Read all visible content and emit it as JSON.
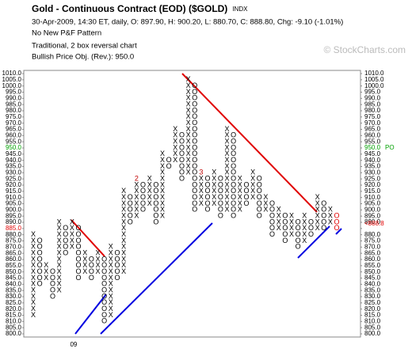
{
  "chart_data": {
    "type": "point-and-figure",
    "title": "Gold - Continuous Contract (EOD) ($GOLD)",
    "exchange": "INDX",
    "subtitle": "30-Apr-2009, 14:30 ET, daily, O: 897.90, H: 900.20, L: 880.70, C: 888.80, Chg: -9.10 (-1.01%)",
    "pattern": "No New P&F Pattern",
    "chart_method": "Traditional, 2 box reversal chart",
    "price_objective_text": "Bullish Price Obj. (Rev.): 950.0",
    "watermark": "© StockCharts.com",
    "box_size": 5,
    "ylim": [
      800,
      1010
    ],
    "yticks": [
      {
        "value": 1010,
        "label": "1010.0"
      },
      {
        "value": 1005,
        "label": "1005.0"
      },
      {
        "value": 1000,
        "label": "1000.0"
      },
      {
        "value": 995,
        "label": "995.0"
      },
      {
        "value": 990,
        "label": "990.0"
      },
      {
        "value": 985,
        "label": "985.0"
      },
      {
        "value": 980,
        "label": "980.0"
      },
      {
        "value": 975,
        "label": "975.0"
      },
      {
        "value": 970,
        "label": "970.0"
      },
      {
        "value": 965,
        "label": "965.0"
      },
      {
        "value": 960,
        "label": "960.0"
      },
      {
        "value": 955,
        "label": "955.0"
      },
      {
        "value": 950,
        "label": "950.0"
      },
      {
        "value": 945,
        "label": "945.0"
      },
      {
        "value": 940,
        "label": "940.0"
      },
      {
        "value": 935,
        "label": "935.0"
      },
      {
        "value": 930,
        "label": "930.0"
      },
      {
        "value": 925,
        "label": "925.0"
      },
      {
        "value": 920,
        "label": "920.0"
      },
      {
        "value": 915,
        "label": "915.0"
      },
      {
        "value": 910,
        "label": "910.0"
      },
      {
        "value": 905,
        "label": "905.0"
      },
      {
        "value": 900,
        "label": "900.0"
      },
      {
        "value": 895,
        "label": "895.0"
      },
      {
        "value": 890,
        "label": "890.0"
      },
      {
        "value": 885,
        "label": "885.0"
      },
      {
        "value": 880,
        "label": "880.0"
      },
      {
        "value": 875,
        "label": "875.0"
      },
      {
        "value": 870,
        "label": "870.0"
      },
      {
        "value": 865,
        "label": "865.0"
      },
      {
        "value": 860,
        "label": "860.0"
      },
      {
        "value": 855,
        "label": "855.0"
      },
      {
        "value": 850,
        "label": "850.0"
      },
      {
        "value": 845,
        "label": "845.0"
      },
      {
        "value": 840,
        "label": "840.0"
      },
      {
        "value": 835,
        "label": "835.0"
      },
      {
        "value": 830,
        "label": "830.0"
      },
      {
        "value": 825,
        "label": "825.0"
      },
      {
        "value": 820,
        "label": "820.0"
      },
      {
        "value": 815,
        "label": "815.0"
      },
      {
        "value": 810,
        "label": "810.0"
      },
      {
        "value": 805,
        "label": "805.0"
      },
      {
        "value": 800,
        "label": "800.0"
      }
    ],
    "price_objective": {
      "value": 950,
      "label": "PO",
      "color": "#00a000"
    },
    "current_box": {
      "value": 885,
      "color": "#e00000"
    },
    "last_price": {
      "value": 888.8,
      "label": "<888.8",
      "color": "#e00000"
    },
    "columns": [
      {
        "type": "X",
        "low": 815,
        "high": 880
      },
      {
        "type": "O",
        "low": 840,
        "high": 875
      },
      {
        "type": "X",
        "low": 845,
        "high": 855
      },
      {
        "type": "O",
        "low": 830,
        "high": 850
      },
      {
        "type": "X",
        "low": 835,
        "high": 890
      },
      {
        "type": "O",
        "low": 865,
        "high": 885
      },
      {
        "type": "X",
        "low": 870,
        "high": 890
      },
      {
        "type": "O",
        "low": 845,
        "high": 885
      },
      {
        "type": "X",
        "low": 850,
        "high": 865
      },
      {
        "type": "O",
        "low": 845,
        "high": 860
      },
      {
        "type": "X",
        "low": 850,
        "high": 865
      },
      {
        "type": "O",
        "low": 810,
        "high": 860
      },
      {
        "type": "X",
        "low": 815,
        "high": 870
      },
      {
        "type": "O",
        "low": 845,
        "high": 865
      },
      {
        "type": "X",
        "low": 850,
        "high": 915
      },
      {
        "type": "O",
        "low": 890,
        "high": 910
      },
      {
        "type": "X",
        "low": 895,
        "high": 925
      },
      {
        "type": "O",
        "low": 900,
        "high": 920
      },
      {
        "type": "X",
        "low": 905,
        "high": 925
      },
      {
        "type": "O",
        "low": 890,
        "high": 920
      },
      {
        "type": "X",
        "low": 895,
        "high": 945
      },
      {
        "type": "O",
        "low": 935,
        "high": 940
      },
      {
        "type": "X",
        "low": 940,
        "high": 965
      },
      {
        "type": "O",
        "low": 925,
        "high": 960
      },
      {
        "type": "X",
        "low": 930,
        "high": 1005
      },
      {
        "type": "O",
        "low": 900,
        "high": 1000
      },
      {
        "type": "X",
        "low": 905,
        "high": 930
      },
      {
        "type": "O",
        "low": 900,
        "high": 925
      },
      {
        "type": "X",
        "low": 905,
        "high": 930
      },
      {
        "type": "O",
        "low": 895,
        "high": 925
      },
      {
        "type": "X",
        "low": 900,
        "high": 965
      },
      {
        "type": "O",
        "low": 895,
        "high": 960
      },
      {
        "type": "X",
        "low": 900,
        "high": 925
      },
      {
        "type": "O",
        "low": 905,
        "high": 920
      },
      {
        "type": "X",
        "low": 910,
        "high": 930
      },
      {
        "type": "O",
        "low": 895,
        "high": 925
      },
      {
        "type": "X",
        "low": 900,
        "high": 910
      },
      {
        "type": "O",
        "low": 880,
        "high": 905
      },
      {
        "type": "X",
        "low": 885,
        "high": 900
      },
      {
        "type": "O",
        "low": 875,
        "high": 895
      },
      {
        "type": "X",
        "low": 880,
        "high": 895
      },
      {
        "type": "O",
        "low": 870,
        "high": 890
      },
      {
        "type": "X",
        "low": 875,
        "high": 895
      },
      {
        "type": "O",
        "low": 880,
        "high": 890
      },
      {
        "type": "X",
        "low": 885,
        "high": 910
      },
      {
        "type": "O",
        "low": 885,
        "high": 905
      },
      {
        "type": "X",
        "low": 890,
        "high": 900
      },
      {
        "type": "O",
        "low": 885,
        "high": 895
      }
    ],
    "last_column_color": "#e00000",
    "month_markers": [
      {
        "column": 16,
        "value": 925,
        "label": "2",
        "color": "#c00000"
      },
      {
        "column": 26,
        "value": 930,
        "label": "3",
        "color": "#c00000"
      }
    ],
    "year_labels": [
      {
        "column": 6,
        "label": "09"
      }
    ]
  }
}
